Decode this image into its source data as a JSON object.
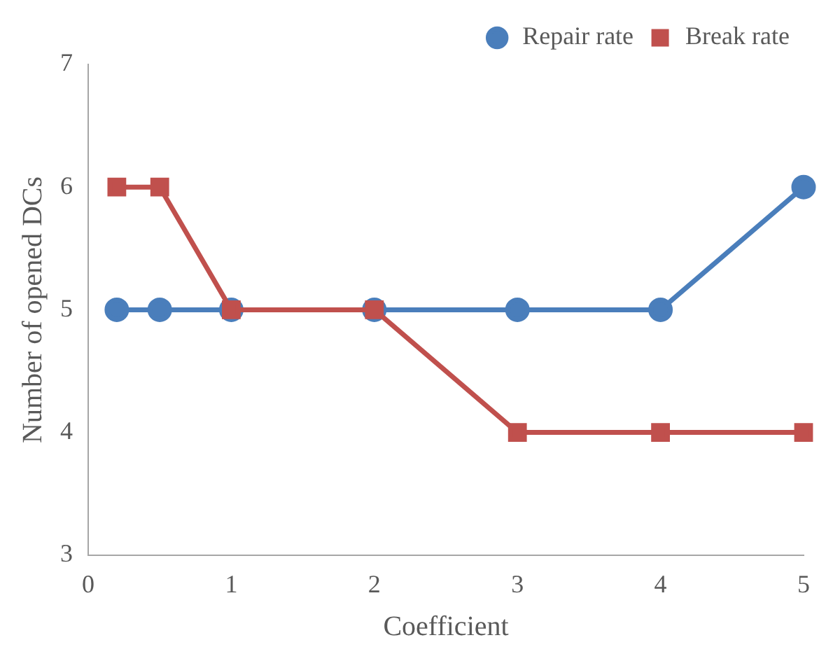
{
  "chart_data": {
    "type": "line",
    "xlabel": "Coefficient",
    "ylabel": "Number of opened DCs",
    "x": [
      0.2,
      0.5,
      1,
      2,
      3,
      4,
      5
    ],
    "series": [
      {
        "name": "Repair rate",
        "color": "#4a7ebb",
        "marker": "circle",
        "values": [
          5,
          5,
          5,
          5,
          5,
          5,
          6
        ]
      },
      {
        "name": "Break rate",
        "color": "#c0504d",
        "marker": "square",
        "values": [
          6,
          6,
          5,
          5,
          4,
          4,
          4
        ]
      }
    ],
    "xlim": [
      0,
      5
    ],
    "xticks": [
      0,
      1,
      2,
      3,
      4,
      5
    ],
    "ylim": [
      3,
      7
    ],
    "yticks": [
      3,
      4,
      5,
      6,
      7
    ],
    "grid": false,
    "legend": "top right",
    "line_style": "solid"
  }
}
